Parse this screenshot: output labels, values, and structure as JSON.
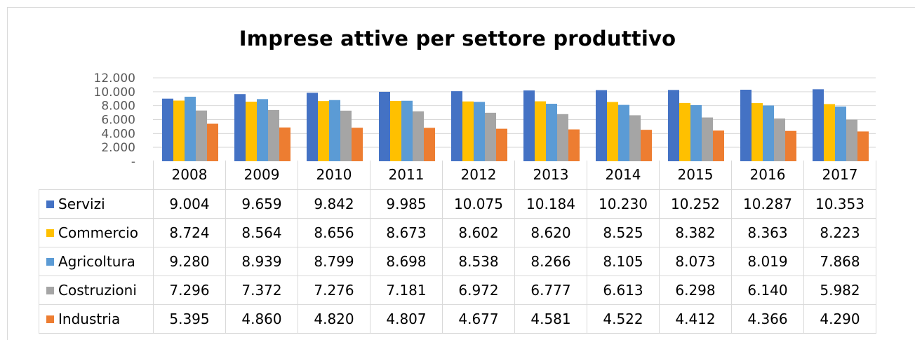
{
  "colors": {
    "Servizi": "#4472c4",
    "Commercio": "#ffc000",
    "Agricoltura": "#5b9bd5",
    "Costruzioni": "#a5a5a5",
    "Industria": "#ed7d31"
  },
  "chart_data": {
    "type": "bar",
    "title": "Imprese attive per settore produttivo",
    "categories": [
      "2008",
      "2009",
      "2010",
      "2011",
      "2012",
      "2013",
      "2014",
      "2015",
      "2016",
      "2017"
    ],
    "ylim": [
      0,
      12000
    ],
    "yticks": [
      {
        "value": 0,
        "label": "-"
      },
      {
        "value": 2000,
        "label": "2.000"
      },
      {
        "value": 4000,
        "label": "4.000"
      },
      {
        "value": 6000,
        "label": "6.000"
      },
      {
        "value": 8000,
        "label": "8.000"
      },
      {
        "value": 10000,
        "label": "10.000"
      },
      {
        "value": 12000,
        "label": "12.000"
      }
    ],
    "grid": true,
    "legend": "data-table",
    "series": [
      {
        "name": "Servizi",
        "values": [
          9004,
          9659,
          9842,
          9985,
          10075,
          10184,
          10230,
          10252,
          10287,
          10353
        ],
        "labels": [
          "9.004",
          "9.659",
          "9.842",
          "9.985",
          "10.075",
          "10.184",
          "10.230",
          "10.252",
          "10.287",
          "10.353"
        ]
      },
      {
        "name": "Commercio",
        "values": [
          8724,
          8564,
          8656,
          8673,
          8602,
          8620,
          8525,
          8382,
          8363,
          8223
        ],
        "labels": [
          "8.724",
          "8.564",
          "8.656",
          "8.673",
          "8.602",
          "8.620",
          "8.525",
          "8.382",
          "8.363",
          "8.223"
        ]
      },
      {
        "name": "Agricoltura",
        "values": [
          9280,
          8939,
          8799,
          8698,
          8538,
          8266,
          8105,
          8073,
          8019,
          7868
        ],
        "labels": [
          "9.280",
          "8.939",
          "8.799",
          "8.698",
          "8.538",
          "8.266",
          "8.105",
          "8.073",
          "8.019",
          "7.868"
        ]
      },
      {
        "name": "Costruzioni",
        "values": [
          7296,
          7372,
          7276,
          7181,
          6972,
          6777,
          6613,
          6298,
          6140,
          5982
        ],
        "labels": [
          "7.296",
          "7.372",
          "7.276",
          "7.181",
          "6.972",
          "6.777",
          "6.613",
          "6.298",
          "6.140",
          "5.982"
        ]
      },
      {
        "name": "Industria",
        "values": [
          5395,
          4860,
          4820,
          4807,
          4677,
          4581,
          4522,
          4412,
          4366,
          4290
        ],
        "labels": [
          "5.395",
          "4.860",
          "4.820",
          "4.807",
          "4.677",
          "4.581",
          "4.522",
          "4.412",
          "4.366",
          "4.290"
        ]
      }
    ]
  }
}
